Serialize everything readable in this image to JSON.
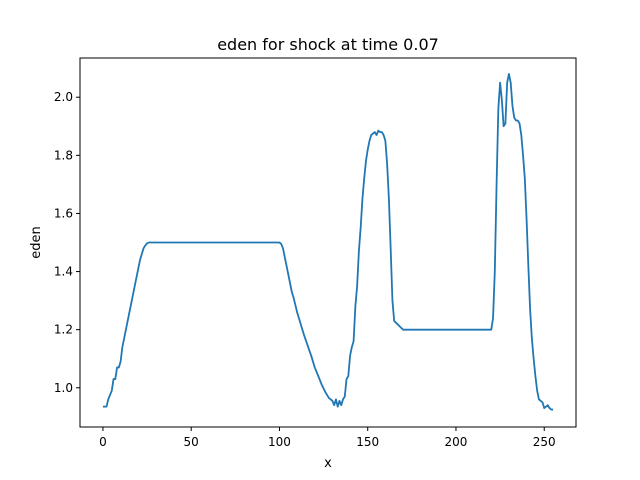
{
  "chart_data": {
    "type": "line",
    "title": "eden for shock at time 0.07",
    "xlabel": "x",
    "ylabel": "eden",
    "xlim": [
      -13,
      268
    ],
    "ylim": [
      0.865,
      2.135
    ],
    "xticks": [
      0,
      50,
      100,
      150,
      200,
      250
    ],
    "xtick_labels": [
      "0",
      "50",
      "100",
      "150",
      "200",
      "250"
    ],
    "yticks": [
      1.0,
      1.2,
      1.4,
      1.6,
      1.8,
      2.0
    ],
    "ytick_labels": [
      "1.0",
      "1.2",
      "1.4",
      "1.6",
      "1.8",
      "2.0"
    ],
    "grid": false,
    "series": [
      {
        "color": "#1f77b4",
        "x": [
          0,
          1,
          2,
          3,
          4,
          5,
          6,
          7,
          8,
          9,
          10,
          11,
          12,
          13,
          14,
          15,
          16,
          17,
          18,
          19,
          20,
          21,
          22,
          23,
          24,
          25,
          26,
          27,
          28,
          30,
          40,
          50,
          60,
          70,
          80,
          90,
          98,
          99,
          100,
          101,
          102,
          103,
          104,
          105,
          106,
          107,
          108,
          109,
          110,
          112,
          114,
          116,
          118,
          120,
          122,
          124,
          126,
          128,
          130,
          131,
          132,
          133,
          134,
          135,
          136,
          137,
          138,
          139,
          140,
          141,
          142,
          143,
          144,
          145,
          146,
          147,
          148,
          149,
          150,
          151,
          152,
          153,
          154,
          155,
          156,
          157,
          158,
          159,
          160,
          161,
          162,
          163,
          164,
          165,
          170,
          180,
          190,
          200,
          210,
          215,
          217,
          218,
          219,
          220,
          221,
          222,
          223,
          224,
          225,
          226,
          227,
          228,
          229,
          230,
          231,
          232,
          233,
          234,
          235,
          236,
          237,
          238,
          239,
          240,
          241,
          242,
          243,
          244,
          245,
          246,
          247,
          248,
          249,
          250,
          251,
          252,
          253,
          254,
          255
        ],
        "y": [
          0.935,
          0.935,
          0.935,
          0.96,
          0.975,
          0.99,
          1.03,
          1.03,
          1.07,
          1.07,
          1.09,
          1.14,
          1.17,
          1.2,
          1.23,
          1.26,
          1.29,
          1.32,
          1.35,
          1.38,
          1.41,
          1.44,
          1.46,
          1.48,
          1.49,
          1.497,
          1.5,
          1.5,
          1.5,
          1.5,
          1.5,
          1.5,
          1.5,
          1.5,
          1.5,
          1.5,
          1.5,
          1.5,
          1.5,
          1.495,
          1.48,
          1.45,
          1.42,
          1.39,
          1.36,
          1.33,
          1.31,
          1.285,
          1.26,
          1.22,
          1.18,
          1.145,
          1.11,
          1.07,
          1.04,
          1.01,
          0.985,
          0.965,
          0.955,
          0.94,
          0.96,
          0.935,
          0.955,
          0.94,
          0.96,
          0.97,
          1.03,
          1.04,
          1.11,
          1.14,
          1.16,
          1.28,
          1.35,
          1.47,
          1.55,
          1.65,
          1.72,
          1.78,
          1.82,
          1.85,
          1.87,
          1.875,
          1.88,
          1.87,
          1.885,
          1.88,
          1.88,
          1.87,
          1.85,
          1.77,
          1.65,
          1.48,
          1.3,
          1.23,
          1.2,
          1.2,
          1.2,
          1.2,
          1.2,
          1.2,
          1.2,
          1.2,
          1.2,
          1.2,
          1.24,
          1.4,
          1.7,
          1.96,
          2.05,
          1.99,
          1.9,
          1.91,
          2.05,
          2.08,
          2.05,
          1.97,
          1.93,
          1.92,
          1.92,
          1.91,
          1.87,
          1.8,
          1.72,
          1.58,
          1.42,
          1.27,
          1.17,
          1.1,
          1.04,
          0.99,
          0.96,
          0.955,
          0.95,
          0.93,
          0.935,
          0.94,
          0.93,
          0.925,
          0.925
        ]
      }
    ]
  }
}
